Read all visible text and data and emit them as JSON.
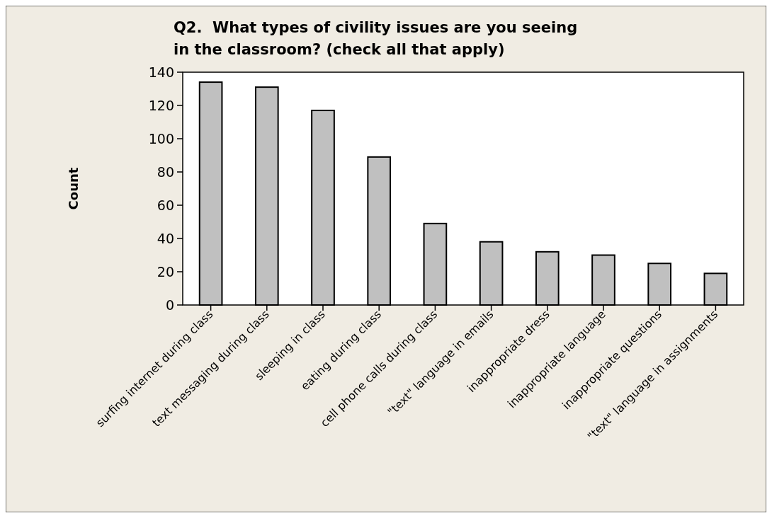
{
  "chart_data": {
    "type": "bar",
    "title": "Q2.  What types of civility issues are you seeing in the classroom? (check all that apply)",
    "ylabel": "Count",
    "categories": [
      "surfing internet during class",
      "text messaging during class",
      "sleeping in class",
      "eating during class",
      "cell phone calls during class",
      "\"text\" language in emails",
      "inappropriate dress",
      "inappropriate language",
      "inappropriate questions",
      "\"text\" language in assignments"
    ],
    "values": [
      134,
      131,
      117,
      89,
      49,
      38,
      32,
      30,
      25,
      19
    ],
    "color": "#c0c0c0",
    "ylim": [
      0,
      140
    ],
    "yticks": [
      0,
      20,
      40,
      60,
      80,
      100,
      120,
      140
    ],
    "grid": false
  }
}
